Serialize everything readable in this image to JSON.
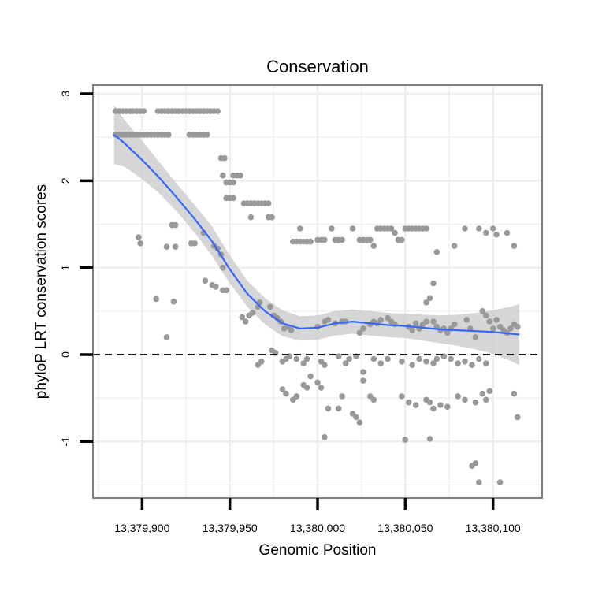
{
  "chart_data": {
    "type": "scatter",
    "title": "Conservation",
    "xlabel": "Genomic Position",
    "ylabel": "phyloP LRT conservation scores",
    "xlim": [
      13379872,
      13380128
    ],
    "ylim": [
      -1.65,
      3.1
    ],
    "x_ticks": [
      13379900,
      13379950,
      13380000,
      13380050,
      13380100
    ],
    "x_tick_labels": [
      "13,379,900",
      "13,379,950",
      "13,380,000",
      "13,380,050",
      "13,380,100"
    ],
    "y_ticks": [
      -1,
      0,
      1,
      2,
      3
    ],
    "y_tick_labels": [
      "-1",
      "0",
      "1",
      "2",
      "3"
    ],
    "reference_line": {
      "y": 0,
      "style": "dashed"
    },
    "colors": {
      "points": "#999999",
      "smooth": "#3366ff",
      "ribbon": "#cccccc",
      "grid": "#eeeeee",
      "border": "#7f7f7f"
    },
    "points": [
      [
        13379885,
        2.8
      ],
      [
        13379887,
        2.8
      ],
      [
        13379889,
        2.8
      ],
      [
        13379891,
        2.8
      ],
      [
        13379893,
        2.8
      ],
      [
        13379895,
        2.8
      ],
      [
        13379897,
        2.8
      ],
      [
        13379899,
        2.8
      ],
      [
        13379901,
        2.8
      ],
      [
        13379909,
        2.8
      ],
      [
        13379911,
        2.8
      ],
      [
        13379913,
        2.8
      ],
      [
        13379915,
        2.8
      ],
      [
        13379917,
        2.8
      ],
      [
        13379919,
        2.8
      ],
      [
        13379921,
        2.8
      ],
      [
        13379923,
        2.8
      ],
      [
        13379925,
        2.8
      ],
      [
        13379927,
        2.8
      ],
      [
        13379929,
        2.8
      ],
      [
        13379931,
        2.8
      ],
      [
        13379933,
        2.8
      ],
      [
        13379935,
        2.8
      ],
      [
        13379937,
        2.8
      ],
      [
        13379939,
        2.8
      ],
      [
        13379941,
        2.8
      ],
      [
        13379943,
        2.8
      ],
      [
        13379885,
        2.53
      ],
      [
        13379887,
        2.53
      ],
      [
        13379889,
        2.53
      ],
      [
        13379891,
        2.53
      ],
      [
        13379893,
        2.53
      ],
      [
        13379895,
        2.53
      ],
      [
        13379897,
        2.53
      ],
      [
        13379899,
        2.53
      ],
      [
        13379901,
        2.53
      ],
      [
        13379903,
        2.53
      ],
      [
        13379905,
        2.53
      ],
      [
        13379907,
        2.53
      ],
      [
        13379909,
        2.53
      ],
      [
        13379911,
        2.53
      ],
      [
        13379913,
        2.53
      ],
      [
        13379915,
        2.53
      ],
      [
        13379927,
        2.53
      ],
      [
        13379929,
        2.53
      ],
      [
        13379931,
        2.53
      ],
      [
        13379933,
        2.53
      ],
      [
        13379935,
        2.53
      ],
      [
        13379937,
        2.53
      ],
      [
        13379945,
        2.26
      ],
      [
        13379947,
        2.26
      ],
      [
        13379946,
        2.06
      ],
      [
        13379952,
        2.06
      ],
      [
        13379954,
        2.06
      ],
      [
        13379956,
        2.06
      ],
      [
        13379948,
        1.98
      ],
      [
        13379950,
        1.98
      ],
      [
        13379952,
        1.98
      ],
      [
        13379948,
        1.8
      ],
      [
        13379950,
        1.8
      ],
      [
        13379952,
        1.8
      ],
      [
        13379958,
        1.74
      ],
      [
        13379960,
        1.74
      ],
      [
        13379962,
        1.74
      ],
      [
        13379964,
        1.74
      ],
      [
        13379966,
        1.74
      ],
      [
        13379968,
        1.74
      ],
      [
        13379970,
        1.74
      ],
      [
        13379972,
        1.74
      ],
      [
        13379972,
        1.58
      ],
      [
        13379974,
        1.58
      ],
      [
        13379962,
        1.58
      ],
      [
        13379917,
        1.49
      ],
      [
        13379919,
        1.49
      ],
      [
        13379935,
        1.4
      ],
      [
        13379928,
        1.28
      ],
      [
        13379930,
        1.28
      ],
      [
        13379941,
        1.25
      ],
      [
        13379943,
        1.22
      ],
      [
        13379945,
        1.15
      ],
      [
        13379898,
        1.35
      ],
      [
        13379899,
        1.28
      ],
      [
        13379914,
        1.24
      ],
      [
        13379919,
        1.24
      ],
      [
        13379946,
        1.0
      ],
      [
        13379936,
        0.85
      ],
      [
        13379940,
        0.8
      ],
      [
        13379942,
        0.78
      ],
      [
        13379946,
        0.74
      ],
      [
        13379948,
        0.74
      ],
      [
        13379908,
        0.64
      ],
      [
        13379918,
        0.61
      ],
      [
        13379914,
        0.2
      ],
      [
        13379957,
        0.43
      ],
      [
        13379959,
        0.38
      ],
      [
        13379961,
        0.45
      ],
      [
        13379963,
        0.48
      ],
      [
        13379966,
        0.55
      ],
      [
        13379967,
        0.6
      ],
      [
        13379973,
        0.55
      ],
      [
        13379975,
        0.45
      ],
      [
        13379977,
        0.42
      ],
      [
        13379979,
        0.38
      ],
      [
        13379981,
        0.3
      ],
      [
        13379983,
        0.32
      ],
      [
        13379985,
        0.28
      ],
      [
        13379986,
        1.3
      ],
      [
        13379988,
        1.3
      ],
      [
        13379990,
        1.3
      ],
      [
        13379992,
        1.3
      ],
      [
        13379994,
        1.3
      ],
      [
        13379996,
        1.3
      ],
      [
        13379990,
        1.45
      ],
      [
        13380000,
        1.32
      ],
      [
        13380002,
        1.32
      ],
      [
        13380004,
        1.32
      ],
      [
        13380008,
        1.45
      ],
      [
        13380010,
        1.32
      ],
      [
        13380012,
        1.32
      ],
      [
        13380014,
        1.32
      ],
      [
        13380020,
        1.45
      ],
      [
        13380024,
        1.32
      ],
      [
        13380026,
        1.32
      ],
      [
        13380028,
        1.32
      ],
      [
        13380030,
        1.32
      ],
      [
        13380032,
        1.25
      ],
      [
        13380034,
        1.45
      ],
      [
        13380036,
        1.45
      ],
      [
        13380038,
        1.45
      ],
      [
        13380040,
        1.45
      ],
      [
        13380042,
        1.45
      ],
      [
        13380044,
        1.4
      ],
      [
        13380046,
        1.32
      ],
      [
        13380048,
        1.32
      ],
      [
        13380050,
        1.45
      ],
      [
        13380052,
        1.45
      ],
      [
        13380054,
        1.45
      ],
      [
        13380056,
        1.45
      ],
      [
        13380058,
        1.45
      ],
      [
        13380060,
        1.45
      ],
      [
        13380062,
        1.45
      ],
      [
        13380066,
        0.38
      ],
      [
        13380068,
        0.32
      ],
      [
        13380070,
        0.28
      ],
      [
        13380072,
        0.3
      ],
      [
        13380074,
        0.25
      ],
      [
        13380076,
        0.3
      ],
      [
        13380078,
        0.35
      ],
      [
        13380085,
        0.4
      ],
      [
        13380087,
        0.3
      ],
      [
        13380090,
        0.2
      ],
      [
        13380094,
        0.5
      ],
      [
        13380096,
        0.45
      ],
      [
        13380098,
        0.38
      ],
      [
        13380100,
        0.3
      ],
      [
        13380102,
        0.4
      ],
      [
        13380104,
        0.32
      ],
      [
        13380106,
        0.28
      ],
      [
        13380108,
        0.25
      ],
      [
        13380110,
        0.3
      ],
      [
        13380112,
        0.35
      ],
      [
        13380114,
        0.32
      ],
      [
        13380068,
        1.18
      ],
      [
        13380078,
        1.25
      ],
      [
        13380084,
        1.45
      ],
      [
        13380092,
        1.45
      ],
      [
        13380096,
        1.4
      ],
      [
        13380100,
        1.45
      ],
      [
        13380102,
        1.38
      ],
      [
        13380108,
        1.4
      ],
      [
        13380112,
        1.25
      ],
      [
        13380066,
        0.82
      ],
      [
        13380064,
        0.65
      ],
      [
        13380062,
        0.6
      ],
      [
        13380000,
        0.32
      ],
      [
        13380004,
        0.38
      ],
      [
        13380006,
        0.4
      ],
      [
        13380010,
        0.36
      ],
      [
        13380014,
        0.38
      ],
      [
        13380016,
        0.38
      ],
      [
        13380024,
        0.25
      ],
      [
        13380026,
        0.3
      ],
      [
        13380030,
        0.35
      ],
      [
        13380032,
        0.38
      ],
      [
        13380034,
        0.36
      ],
      [
        13380036,
        0.4
      ],
      [
        13380040,
        0.42
      ],
      [
        13380042,
        0.38
      ],
      [
        13380044,
        0.35
      ],
      [
        13380052,
        0.32
      ],
      [
        13380054,
        0.28
      ],
      [
        13380056,
        0.36
      ],
      [
        13380058,
        0.3
      ],
      [
        13380060,
        0.35
      ],
      [
        13380062,
        0.38
      ],
      [
        13379974,
        0.05
      ],
      [
        13379976,
        0.02
      ],
      [
        13379980,
        -0.08
      ],
      [
        13379982,
        -0.05
      ],
      [
        13379984,
        -0.02
      ],
      [
        13379988,
        -0.05
      ],
      [
        13379992,
        -0.1
      ],
      [
        13379994,
        -0.05
      ],
      [
        13380002,
        -0.08
      ],
      [
        13380004,
        -0.12
      ],
      [
        13380012,
        -0.02
      ],
      [
        13380016,
        -0.1
      ],
      [
        13380018,
        -0.05
      ],
      [
        13380022,
        -0.02
      ],
      [
        13380026,
        -0.2
      ],
      [
        13380032,
        -0.05
      ],
      [
        13380036,
        -0.1
      ],
      [
        13380040,
        -0.05
      ],
      [
        13380048,
        -0.08
      ],
      [
        13380054,
        -0.12
      ],
      [
        13380058,
        -0.05
      ],
      [
        13380062,
        -0.08
      ],
      [
        13380066,
        -0.1
      ],
      [
        13380068,
        -0.05
      ],
      [
        13380072,
        -0.02
      ],
      [
        13380076,
        -0.05
      ],
      [
        13380080,
        -0.1
      ],
      [
        13380084,
        -0.08
      ],
      [
        13380088,
        -0.12
      ],
      [
        13380092,
        -0.05
      ],
      [
        13380096,
        -0.1
      ],
      [
        13379966,
        -0.12
      ],
      [
        13379968,
        -0.08
      ],
      [
        13379980,
        -0.4
      ],
      [
        13379982,
        -0.45
      ],
      [
        13379986,
        -0.52
      ],
      [
        13379988,
        -0.48
      ],
      [
        13379992,
        -0.35
      ],
      [
        13379994,
        -0.38
      ],
      [
        13379996,
        -0.25
      ],
      [
        13380000,
        -0.32
      ],
      [
        13380002,
        -0.38
      ],
      [
        13380006,
        -0.62
      ],
      [
        13380012,
        -0.62
      ],
      [
        13380014,
        -0.48
      ],
      [
        13380020,
        -0.68
      ],
      [
        13380022,
        -0.72
      ],
      [
        13380024,
        -0.78
      ],
      [
        13380026,
        -0.3
      ],
      [
        13380030,
        -0.48
      ],
      [
        13380032,
        -0.52
      ],
      [
        13380048,
        -0.48
      ],
      [
        13380052,
        -0.55
      ],
      [
        13380056,
        -0.58
      ],
      [
        13380062,
        -0.52
      ],
      [
        13380064,
        -0.55
      ],
      [
        13380066,
        -0.62
      ],
      [
        13380070,
        -0.58
      ],
      [
        13380074,
        -0.6
      ],
      [
        13380080,
        -0.48
      ],
      [
        13380084,
        -0.52
      ],
      [
        13380090,
        -0.55
      ],
      [
        13380094,
        -0.45
      ],
      [
        13380096,
        -0.52
      ],
      [
        13380098,
        -0.42
      ],
      [
        13380112,
        -0.45
      ],
      [
        13380114,
        -0.72
      ],
      [
        13380004,
        -0.95
      ],
      [
        13380050,
        -0.98
      ],
      [
        13380064,
        -0.97
      ],
      [
        13380088,
        -1.28
      ],
      [
        13380090,
        -1.25
      ],
      [
        13380092,
        -1.47
      ],
      [
        13380104,
        -1.47
      ]
    ],
    "smooth": [
      [
        13379884,
        2.53
      ],
      [
        13379890,
        2.43
      ],
      [
        13379900,
        2.24
      ],
      [
        13379910,
        2.03
      ],
      [
        13379920,
        1.8
      ],
      [
        13379930,
        1.56
      ],
      [
        13379940,
        1.3
      ],
      [
        13379950,
        0.98
      ],
      [
        13379960,
        0.7
      ],
      [
        13379970,
        0.5
      ],
      [
        13379980,
        0.36
      ],
      [
        13379990,
        0.3
      ],
      [
        13380000,
        0.31
      ],
      [
        13380010,
        0.36
      ],
      [
        13380020,
        0.38
      ],
      [
        13380030,
        0.36
      ],
      [
        13380040,
        0.34
      ],
      [
        13380050,
        0.33
      ],
      [
        13380060,
        0.31
      ],
      [
        13380070,
        0.29
      ],
      [
        13380080,
        0.28
      ],
      [
        13380090,
        0.27
      ],
      [
        13380100,
        0.26
      ],
      [
        13380110,
        0.24
      ],
      [
        13380115,
        0.23
      ]
    ],
    "ribbon": [
      [
        13379884,
        2.87,
        2.19
      ],
      [
        13379890,
        2.7,
        2.16
      ],
      [
        13379900,
        2.46,
        2.02
      ],
      [
        13379910,
        2.21,
        1.85
      ],
      [
        13379920,
        1.96,
        1.64
      ],
      [
        13379930,
        1.72,
        1.4
      ],
      [
        13379940,
        1.47,
        1.13
      ],
      [
        13379950,
        1.14,
        0.82
      ],
      [
        13379960,
        0.85,
        0.55
      ],
      [
        13379970,
        0.65,
        0.35
      ],
      [
        13379980,
        0.51,
        0.21
      ],
      [
        13379990,
        0.44,
        0.16
      ],
      [
        13380000,
        0.45,
        0.17
      ],
      [
        13380010,
        0.5,
        0.22
      ],
      [
        13380020,
        0.52,
        0.24
      ],
      [
        13380030,
        0.5,
        0.22
      ],
      [
        13380040,
        0.48,
        0.2
      ],
      [
        13380050,
        0.47,
        0.19
      ],
      [
        13380060,
        0.46,
        0.16
      ],
      [
        13380070,
        0.45,
        0.13
      ],
      [
        13380080,
        0.46,
        0.1
      ],
      [
        13380090,
        0.48,
        0.06
      ],
      [
        13380100,
        0.51,
        0.01
      ],
      [
        13380110,
        0.55,
        -0.07
      ],
      [
        13380115,
        0.58,
        -0.12
      ]
    ],
    "grid": "on",
    "legend": "none"
  }
}
